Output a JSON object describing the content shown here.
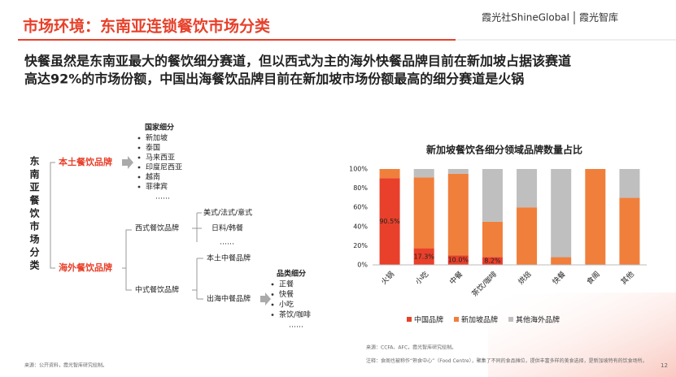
{
  "header": {
    "title": "市场环境：东南亚连锁餐饮市场分类",
    "logo": "霞光社ShineGlobal",
    "brand": "霞光智库"
  },
  "subtitle": [
    "快餐虽然是东南亚最大的餐饮细分赛道，但以西式为主的海外快餐品牌目前在新加坡占据该赛道",
    "高达92%的市场份额，中国出海餐饮品牌目前在新加坡市场份额最高的细分赛道是火锅"
  ],
  "tree": {
    "root": "东南亚餐饮市场分类",
    "local": {
      "label": "本土餐饮品牌",
      "list_title": "国家细分",
      "items": [
        "新加坡",
        "泰国",
        "马来西亚",
        "印度尼西亚",
        "越南",
        "菲律宾",
        "……"
      ]
    },
    "overseas": {
      "label": "海外餐饮品牌",
      "western": {
        "label": "西式餐饮品牌",
        "items": [
          "美式/法式/意式",
          "日料/韩餐",
          "……"
        ]
      },
      "chinese": {
        "label": "中式餐饮品牌",
        "local": "本土中餐品牌",
        "outbound": "出海中餐品牌",
        "list_title": "品类细分",
        "items": [
          "正餐",
          "快餐",
          "小吃",
          "茶饮/咖啡",
          "……"
        ]
      }
    }
  },
  "chart_data": {
    "type": "stacked_bar",
    "title": "新加坡餐饮各细分领域品牌数量占比",
    "categories": [
      "火锅",
      "小吃",
      "中餐",
      "茶饮/咖啡",
      "烘焙",
      "快餐",
      "食阁",
      "其他"
    ],
    "series": [
      {
        "name": "中国品牌",
        "color": "#e8402a",
        "values": [
          90.5,
          17.3,
          10.0,
          8.2,
          0,
          0,
          0,
          0
        ],
        "value_labels": [
          "90.5%",
          "17.3%",
          "10.0%",
          "8.2%",
          null,
          null,
          null,
          null
        ]
      },
      {
        "name": "新加坡品牌",
        "color": "#f07f3c",
        "values": [
          9.5,
          74,
          85,
          36.8,
          60,
          8,
          100,
          70
        ]
      },
      {
        "name": "其他海外品牌",
        "color": "#bfbfbf",
        "values": [
          0,
          8.7,
          5,
          55,
          40,
          92,
          0,
          30
        ]
      }
    ],
    "ylim": [
      0,
      100
    ],
    "yticks": [
      {
        "value": 0,
        "label": "0%"
      },
      {
        "value": 20,
        "label": "20%"
      },
      {
        "value": 40,
        "label": "40%"
      },
      {
        "value": 60,
        "label": "60%"
      },
      {
        "value": 80,
        "label": "80%"
      },
      {
        "value": 100,
        "label": "100%"
      }
    ],
    "grid": false
  },
  "footer": {
    "source_left": "来源：公开资料，霞光智库研究绘制。",
    "chart_source": "来源：CCFA、AFC，霞光智库研究绘制。",
    "note": "注释：食阁也被称作“熟食中心”（Food Centre），聚集了不同的食品摊位，提供丰富多样的美食选择，是新加坡特有的饮食场所。",
    "page": "12"
  }
}
